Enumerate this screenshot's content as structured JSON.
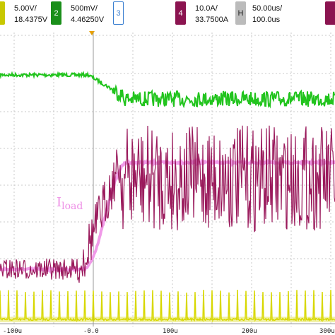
{
  "channels": [
    {
      "num": "",
      "scale": "5.00V/",
      "value": "18.4375V",
      "color": "#c8c800",
      "filled": true
    },
    {
      "num": "2",
      "scale": "500mV/",
      "value": "4.46250V",
      "color": "#1a8f1a",
      "filled": true
    },
    {
      "num": "3",
      "scale": "",
      "value": "",
      "color": "#3a7fd0",
      "filled": false
    },
    {
      "num": "4",
      "scale": "10.0A/",
      "value": "33.7500A",
      "color": "#8b1450",
      "filled": true
    }
  ],
  "horizontal": {
    "num": "H",
    "scale": "50.00us/",
    "value": "100.0us",
    "color": "#bbbbbb"
  },
  "xaxis": {
    "labels": [
      "-100u",
      "-0.0",
      "100u",
      "200u",
      "300u"
    ]
  },
  "trace_label": {
    "main": "I",
    "sub": "load"
  },
  "colors": {
    "yellow": "#d8d800",
    "green": "#22c41e",
    "magenta": "#9a1a5c",
    "pink": "#f09ae8",
    "grid": "#c9c9c9"
  }
}
